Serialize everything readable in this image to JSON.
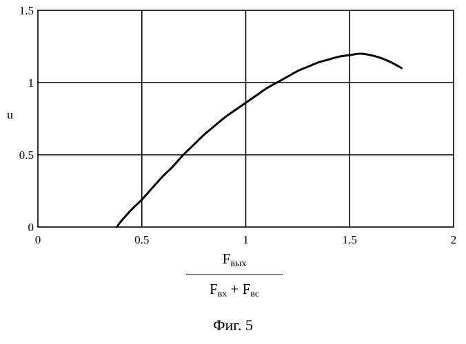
{
  "chart_data": {
    "type": "line",
    "title": "",
    "ylabel": "u",
    "xlabel": {
      "numerator": {
        "base": "F",
        "sub": "вых"
      },
      "denominator": [
        {
          "base": "F",
          "sub": "вх"
        },
        {
          "op": "+"
        },
        {
          "base": "F",
          "sub": "вс"
        }
      ]
    },
    "xlim": [
      0,
      2
    ],
    "ylim": [
      0,
      1.5
    ],
    "xticks": [
      0,
      0.5,
      1,
      1.5,
      2
    ],
    "xtick_labels": [
      "0",
      "0.5",
      "1",
      "1.5",
      "2"
    ],
    "yticks": [
      0,
      0.5,
      1,
      1.5
    ],
    "ytick_labels": [
      "0",
      "0.5",
      "1",
      "1.5"
    ],
    "grid": true,
    "series": [
      {
        "color": "#000000",
        "x": [
          0.38,
          0.4,
          0.45,
          0.5,
          0.55,
          0.6,
          0.65,
          0.7,
          0.75,
          0.8,
          0.85,
          0.9,
          0.95,
          1.0,
          1.05,
          1.1,
          1.15,
          1.2,
          1.25,
          1.3,
          1.35,
          1.4,
          1.45,
          1.5,
          1.55,
          1.6,
          1.65,
          1.7,
          1.75
        ],
        "y": [
          0.0,
          0.04,
          0.12,
          0.19,
          0.27,
          0.35,
          0.42,
          0.5,
          0.57,
          0.64,
          0.7,
          0.76,
          0.81,
          0.86,
          0.91,
          0.96,
          1.0,
          1.04,
          1.08,
          1.11,
          1.14,
          1.16,
          1.18,
          1.19,
          1.2,
          1.19,
          1.17,
          1.14,
          1.1
        ]
      }
    ]
  },
  "caption": "Фиг. 5"
}
